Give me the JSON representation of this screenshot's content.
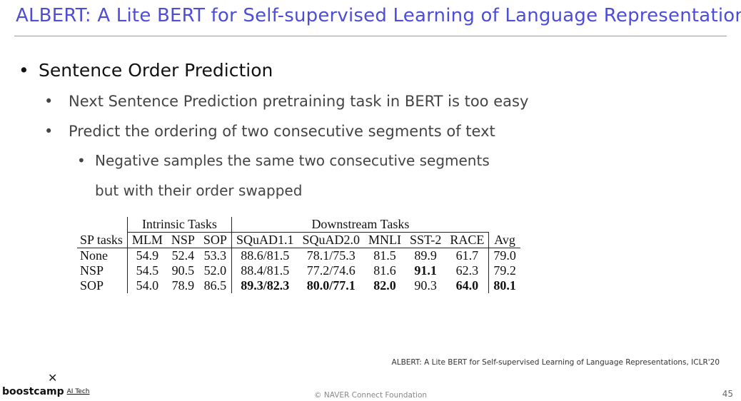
{
  "slide": {
    "title": "ALBERT: A Lite BERT for Self-supervised Learning of Language Representations",
    "bullet_main": "Sentence Order Prediction",
    "sub_bullets": [
      "Next Sentence Prediction pretraining task in BERT is too easy",
      "Predict the ordering of two consecutive segments of text"
    ],
    "sub_sub_bullet": {
      "line1": "Negative samples the same two consecutive segments",
      "line2": "but with their order swapped"
    },
    "bullet_symbol": "•"
  },
  "table": {
    "group_headers": {
      "intrinsic": "Intrinsic Tasks",
      "downstream": "Downstream Tasks"
    },
    "columns": [
      "SP tasks",
      "MLM",
      "NSP",
      "SOP",
      "SQuAD1.1",
      "SQuAD2.0",
      "MNLI",
      "SST-2",
      "RACE",
      "Avg"
    ],
    "rows": [
      {
        "cells": [
          "None",
          "54.9",
          "52.4",
          "53.3",
          "88.6/81.5",
          "78.1/75.3",
          "81.5",
          "89.9",
          "61.7",
          "79.0"
        ]
      },
      {
        "cells": [
          "NSP",
          "54.5",
          "90.5",
          "52.0",
          "88.4/81.5",
          "77.2/74.6",
          "81.6",
          "91.1",
          "62.3",
          "79.2"
        ]
      },
      {
        "cells": [
          "SOP",
          "54.0",
          "78.9",
          "86.5",
          "89.3/82.3",
          "80.0/77.1",
          "82.0",
          "90.3",
          "64.0",
          "80.1"
        ]
      }
    ]
  },
  "citation": "ALBERT: A Lite BERT for Self-supervised Learning of Language Representations, ICLR'20",
  "footer": {
    "logo_mark": "✕",
    "logo_text": "boostcamp",
    "logo_sub": "AI Tech",
    "copyright": "© NAVER Connect Foundation",
    "page_number": "45"
  },
  "colors": {
    "title": "#4d4dd9",
    "rule": "#9a9a9a"
  }
}
